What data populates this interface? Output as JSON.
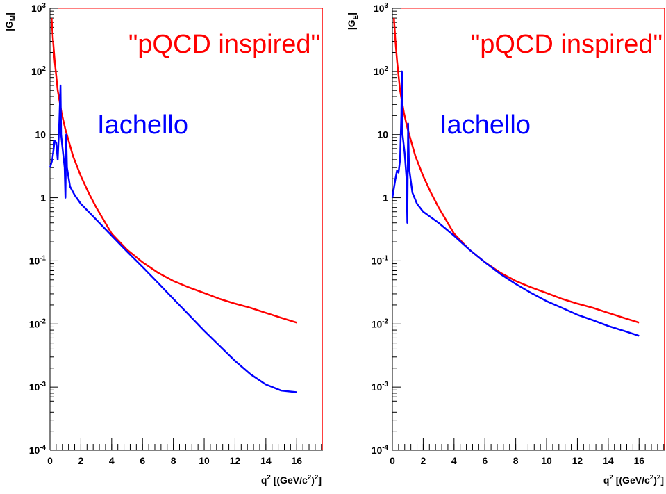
{
  "chart_data": [
    {
      "type": "line",
      "yscale": "log",
      "y_label": "|G_{M}|",
      "x_label": "q^{2} [(GeV/c^{2})^{2}]",
      "xlim": [
        0,
        17.7
      ],
      "xticks": [
        0,
        2,
        4,
        6,
        8,
        10,
        12,
        14,
        16
      ],
      "ylim": [
        0.0001,
        1000
      ],
      "yticks": [
        {
          "value": 0.0001,
          "label": "10^{-4}"
        },
        {
          "value": 0.001,
          "label": "10^{-3}"
        },
        {
          "value": 0.01,
          "label": "10^{-2}"
        },
        {
          "value": 0.1,
          "label": "10^{-1}"
        },
        1,
        10,
        {
          "value": 100,
          "label": "10^{2}"
        },
        {
          "value": 1000,
          "label": "10^{3}"
        }
      ],
      "series": [
        {
          "name": "\"pQCD inspired\"",
          "color": "#ff0000",
          "x": [
            0.1,
            0.2,
            0.3,
            0.5,
            0.75,
            1,
            1.5,
            2,
            2.5,
            3,
            4,
            5,
            6,
            7,
            8,
            9,
            10,
            11,
            12,
            13,
            14,
            15,
            16
          ],
          "values": [
            700,
            300,
            150,
            50,
            22,
            12,
            4.5,
            2.2,
            1.2,
            0.7,
            0.27,
            0.15,
            0.095,
            0.065,
            0.048,
            0.038,
            0.031,
            0.025,
            0.021,
            0.018,
            0.015,
            0.0125,
            0.0105
          ]
        },
        {
          "name": "Iachello",
          "color": "#0000ff",
          "x": [
            0,
            0.15,
            0.3,
            0.4,
            0.5,
            0.6,
            0.68,
            0.72,
            0.85,
            0.95,
            1.0,
            1.05,
            1.1,
            1.3,
            1.6,
            2,
            3,
            4,
            5,
            6,
            7,
            8,
            9,
            10,
            11,
            12,
            13,
            14,
            15,
            16
          ],
          "values": [
            3,
            4,
            8,
            7.5,
            4,
            15,
            60,
            10,
            5,
            3,
            1,
            10,
            3,
            1.5,
            1.1,
            0.8,
            0.45,
            0.25,
            0.14,
            0.08,
            0.045,
            0.025,
            0.014,
            0.0078,
            0.0045,
            0.0026,
            0.0016,
            0.0011,
            0.00088,
            0.00083
          ]
        }
      ]
    },
    {
      "type": "line",
      "yscale": "log",
      "y_label": "|G_{E}|",
      "x_label": "q^{2} [(GeV/c^{2})^{2}]",
      "xlim": [
        0,
        17.7
      ],
      "xticks": [
        0,
        2,
        4,
        6,
        8,
        10,
        12,
        14,
        16
      ],
      "ylim": [
        0.0001,
        1000
      ],
      "yticks": [
        {
          "value": 0.0001,
          "label": "10^{-4}"
        },
        {
          "value": 0.001,
          "label": "10^{-3}"
        },
        {
          "value": 0.01,
          "label": "10^{-2}"
        },
        {
          "value": 0.1,
          "label": "10^{-1}"
        },
        1,
        10,
        {
          "value": 100,
          "label": "10^{2}"
        },
        {
          "value": 1000,
          "label": "10^{3}"
        }
      ],
      "series": [
        {
          "name": "\"pQCD inspired\"",
          "color": "#ff0000",
          "x": [
            0.1,
            0.2,
            0.3,
            0.5,
            0.75,
            1,
            1.5,
            2,
            2.5,
            3,
            4,
            5,
            6,
            7,
            8,
            9,
            10,
            11,
            12,
            13,
            14,
            15,
            16
          ],
          "values": [
            700,
            300,
            150,
            50,
            22,
            12,
            4.5,
            2.2,
            1.2,
            0.7,
            0.27,
            0.15,
            0.095,
            0.065,
            0.048,
            0.038,
            0.031,
            0.025,
            0.021,
            0.018,
            0.015,
            0.0125,
            0.0105
          ]
        },
        {
          "name": "Iachello",
          "color": "#0000ff",
          "x": [
            0,
            0.2,
            0.3,
            0.4,
            0.5,
            0.58,
            0.62,
            0.66,
            0.8,
            0.92,
            0.97,
            1.02,
            1.08,
            1.3,
            1.6,
            2,
            3,
            4,
            5,
            6,
            7,
            8,
            9,
            10,
            11,
            12,
            13,
            14,
            15,
            16
          ],
          "values": [
            1,
            2,
            2.7,
            2.5,
            4,
            20,
            100,
            10,
            5,
            2,
            0.4,
            15,
            3,
            1.2,
            0.8,
            0.6,
            0.4,
            0.25,
            0.15,
            0.095,
            0.062,
            0.043,
            0.031,
            0.023,
            0.018,
            0.014,
            0.0115,
            0.0093,
            0.0078,
            0.0065
          ]
        }
      ]
    }
  ]
}
